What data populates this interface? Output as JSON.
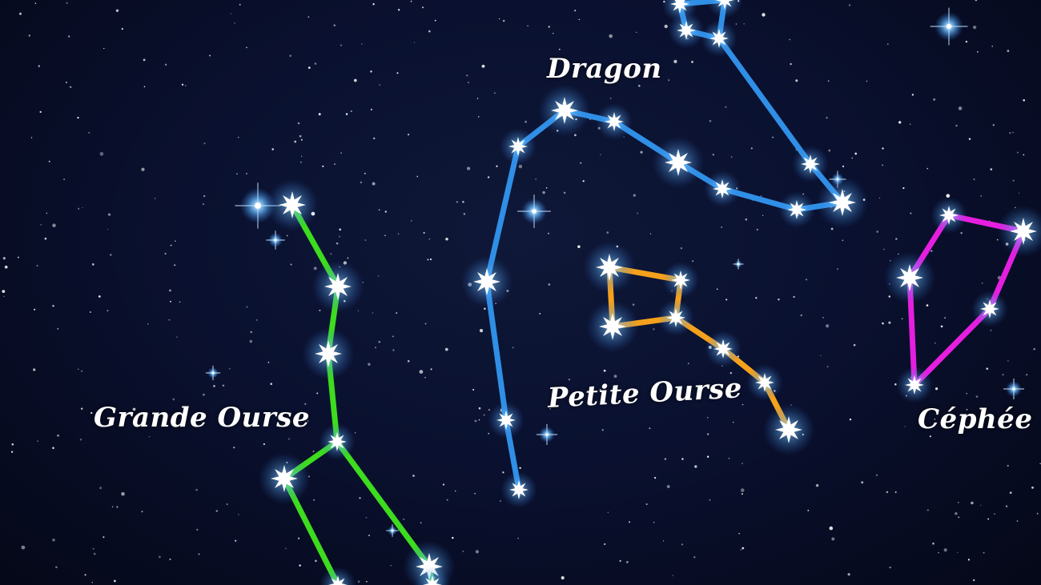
{
  "constellations": [
    {
      "key": "dragon",
      "name": "Dragon",
      "color": "#2f8fe6"
    },
    {
      "key": "petite_ourse",
      "name": "Petite Ourse",
      "color": "#f5a11c"
    },
    {
      "key": "grande_ourse",
      "name": "Grande Ourse",
      "color": "#3ddc1e"
    },
    {
      "key": "cephee",
      "name": "Céphée",
      "color": "#e51ee0"
    }
  ],
  "colors": {
    "sky": "#0a1130",
    "star": "#ffffff",
    "glow": "#5fb8ff"
  }
}
